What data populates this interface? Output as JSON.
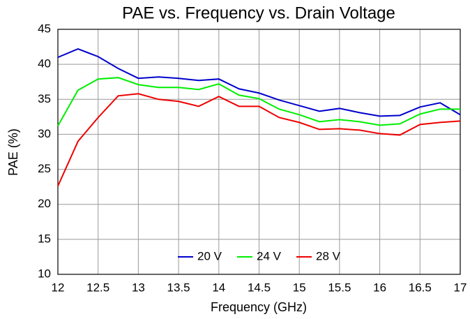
{
  "chart_data": {
    "type": "line",
    "title": "PAE vs. Frequency vs. Drain Voltage",
    "xlabel": "Frequency (GHz)",
    "ylabel": "PAE (%)",
    "x": [
      12,
      12.25,
      12.5,
      12.75,
      13,
      13.25,
      13.5,
      13.75,
      14,
      14.25,
      14.5,
      14.75,
      15,
      15.25,
      15.5,
      15.75,
      16,
      16.25,
      16.5,
      16.75,
      17
    ],
    "series": [
      {
        "name": "20 V",
        "color": "#0000cc",
        "values": [
          41,
          42.2,
          41.1,
          39.4,
          38.0,
          38.2,
          38.0,
          37.7,
          37.9,
          36.5,
          35.9,
          34.9,
          34.1,
          33.3,
          33.7,
          33.1,
          32.6,
          32.7,
          33.9,
          34.5,
          32.8
        ]
      },
      {
        "name": "24 V",
        "color": "#00ee00",
        "values": [
          31.2,
          36.3,
          37.9,
          38.1,
          37.1,
          36.7,
          36.7,
          36.4,
          37.2,
          35.6,
          35.1,
          33.6,
          32.8,
          31.8,
          32.1,
          31.8,
          31.3,
          31.5,
          32.9,
          33.6,
          33.6
        ]
      },
      {
        "name": "28 V",
        "color": "#ee0000",
        "values": [
          22.6,
          29.0,
          32.4,
          35.5,
          35.8,
          35.0,
          34.7,
          34.0,
          35.4,
          34.0,
          34.0,
          32.4,
          31.7,
          30.7,
          30.8,
          30.6,
          30.1,
          29.9,
          31.4,
          31.7,
          31.9
        ]
      }
    ],
    "xlim": [
      12,
      17
    ],
    "xticks": [
      12,
      12.5,
      13,
      13.5,
      14,
      14.5,
      15,
      15.5,
      16,
      16.5,
      17
    ],
    "ylim": [
      10,
      45
    ],
    "yticks": [
      10,
      15,
      20,
      25,
      30,
      35,
      40,
      45
    ],
    "grid": true,
    "legend": "bottom"
  }
}
